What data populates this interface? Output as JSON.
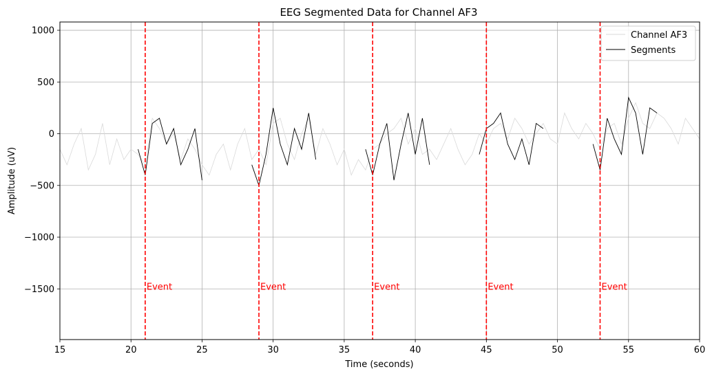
{
  "chart_data": {
    "type": "line",
    "title": "EEG Segmented Data for Channel  AF3",
    "xlabel": "Time (seconds)",
    "ylabel": "Amplitude (uV)",
    "xlim": [
      15,
      60
    ],
    "ylim": [
      -1990,
      1080
    ],
    "xticks": [
      15,
      20,
      25,
      30,
      35,
      40,
      45,
      50,
      55,
      60
    ],
    "yticks": [
      1000,
      500,
      0,
      -500,
      -1000,
      -1500
    ],
    "ytick_labels": [
      "1000",
      "500",
      "0",
      "−500",
      "−1000",
      "−1500"
    ],
    "grid": true,
    "legend_position": "top-right",
    "series": [
      {
        "name": "Channel AF3",
        "color": "#d9d9d9",
        "x": [
          15,
          15.5,
          16,
          16.5,
          17,
          17.5,
          18,
          18.5,
          19,
          19.5,
          20,
          20.5,
          21,
          21.5,
          22,
          22.5,
          23,
          23.5,
          24,
          24.5,
          25,
          25.5,
          26,
          26.5,
          27,
          27.5,
          28,
          28.5,
          29,
          29.5,
          30,
          30.5,
          31,
          31.5,
          32,
          32.5,
          33,
          33.5,
          34,
          34.5,
          35,
          35.5,
          36,
          36.5,
          37,
          37.5,
          38,
          38.5,
          39,
          39.5,
          40,
          40.5,
          41,
          41.5,
          42,
          42.5,
          43,
          43.5,
          44,
          44.5,
          45,
          45.5,
          46,
          46.5,
          47,
          47.5,
          48,
          48.5,
          49,
          49.5,
          50,
          50.5,
          51,
          51.5,
          52,
          52.5,
          53,
          53.5,
          54,
          54.5,
          55,
          55.5,
          56,
          56.5,
          57,
          57.5,
          58,
          58.5,
          59,
          59.5,
          60
        ],
        "y": [
          -150,
          -300,
          -100,
          50,
          -350,
          -200,
          100,
          -300,
          -50,
          -250,
          -150,
          -200,
          -300,
          150,
          50,
          -100,
          0,
          -250,
          -50,
          -150,
          -300,
          -400,
          -200,
          -100,
          -350,
          -100,
          50,
          -250,
          -150,
          -300,
          100,
          150,
          -100,
          -250,
          0,
          150,
          -200,
          50,
          -100,
          -300,
          -150,
          -400,
          -250,
          -350,
          -150,
          -100,
          0,
          50,
          150,
          -100,
          50,
          -200,
          -150,
          -250,
          -100,
          50,
          -150,
          -300,
          -200,
          0,
          -100,
          50,
          100,
          -50,
          150,
          50,
          -100,
          0,
          100,
          -50,
          -100,
          200,
          50,
          -50,
          100,
          0,
          -150,
          50,
          100,
          -100,
          150,
          300,
          100,
          50,
          200,
          150,
          50,
          -100,
          150,
          50,
          -50
        ]
      },
      {
        "name": "Segments",
        "color": "#000000",
        "segments": [
          {
            "x": [
              20.5,
              21.0,
              21.5,
              22.0,
              22.5,
              23.0,
              23.5,
              24.0,
              24.5,
              25.0
            ],
            "y": [
              -150,
              -400,
              100,
              150,
              -100,
              50,
              -300,
              -150,
              50,
              -450
            ]
          },
          {
            "x": [
              28.5,
              29.0,
              29.5,
              30.0,
              30.5,
              31.0,
              31.5,
              32.0,
              32.5,
              33.0
            ],
            "y": [
              -300,
              -500,
              -200,
              250,
              -100,
              -300,
              50,
              -150,
              200,
              -250
            ]
          },
          {
            "x": [
              36.5,
              37.0,
              37.5,
              38.0,
              38.5,
              39.0,
              39.5,
              40.0,
              40.5,
              41.0
            ],
            "y": [
              -150,
              -400,
              -100,
              100,
              -450,
              -100,
              200,
              -200,
              150,
              -300
            ]
          },
          {
            "x": [
              44.5,
              45.0,
              45.5,
              46.0,
              46.5,
              47.0,
              47.5,
              48.0,
              48.5,
              49.0
            ],
            "y": [
              -200,
              50,
              100,
              200,
              -100,
              -250,
              -50,
              -300,
              100,
              50
            ]
          },
          {
            "x": [
              52.5,
              53.0,
              53.5,
              54.0,
              54.5,
              55.0,
              55.5,
              56.0,
              56.5,
              57.0
            ],
            "y": [
              -100,
              -350,
              150,
              -50,
              -200,
              350,
              200,
              -200,
              250,
              200
            ]
          }
        ]
      }
    ],
    "events": {
      "label": "Event",
      "color": "#ff0000",
      "times": [
        21,
        29,
        37,
        45,
        53
      ],
      "label_y": -1480
    }
  }
}
